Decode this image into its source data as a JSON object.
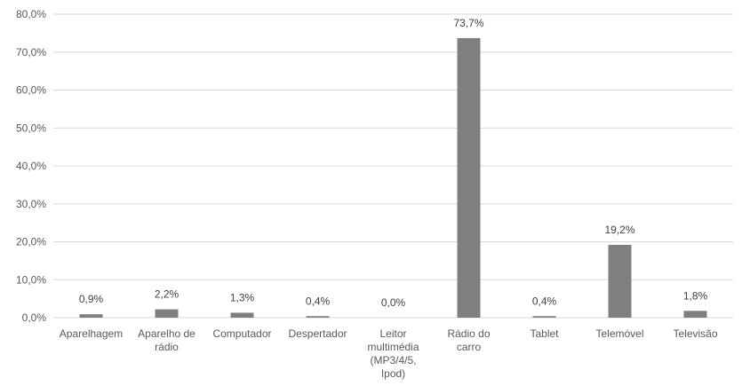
{
  "chart_data": {
    "type": "bar",
    "title": "",
    "xlabel": "",
    "ylabel": "",
    "ylim": [
      0,
      80
    ],
    "yticks": [
      "0,0%",
      "10,0%",
      "20,0%",
      "30,0%",
      "40,0%",
      "50,0%",
      "60,0%",
      "70,0%",
      "80,0%"
    ],
    "grid": true,
    "legend": "none",
    "bar_color": "#7f7f7f",
    "grid_color": "#d9d9d9",
    "categories": [
      [
        "Aparelhagem"
      ],
      [
        "Aparelho de",
        "rádio"
      ],
      [
        "Computador"
      ],
      [
        "Despertador"
      ],
      [
        "Leitor",
        "multimédia",
        "(MP3/4/5,",
        "Ipod)"
      ],
      [
        "Rádio do",
        "carro"
      ],
      [
        "Tablet"
      ],
      [
        "Telemóvel"
      ],
      [
        "Televisão"
      ]
    ],
    "values": [
      0.9,
      2.2,
      1.3,
      0.4,
      0.0,
      73.7,
      0.4,
      19.2,
      1.8
    ],
    "data_labels": [
      "0,9%",
      "2,2%",
      "1,3%",
      "0,4%",
      "0,0%",
      "73,7%",
      "0,4%",
      "19,2%",
      "1,8%"
    ]
  }
}
